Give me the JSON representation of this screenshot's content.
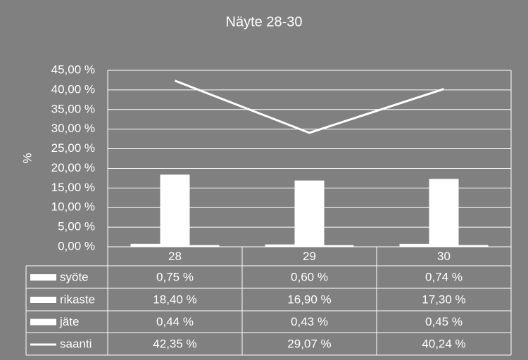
{
  "chart_data": {
    "type": "bar_line",
    "title": "Näyte 28-30",
    "y_label": "%",
    "categories": [
      "28",
      "29",
      "30"
    ],
    "series": [
      {
        "name": "syöte",
        "kind": "bar",
        "color": "#ffffff",
        "values": [
          0.75,
          0.6,
          0.74
        ],
        "value_labels": [
          "0,75 %",
          "0,60 %",
          "0,74 %"
        ]
      },
      {
        "name": "rikaste",
        "kind": "bar",
        "color": "#ffffff",
        "values": [
          18.4,
          16.9,
          17.3
        ],
        "value_labels": [
          "18,40 %",
          "16,90 %",
          "17,30 %"
        ]
      },
      {
        "name": "jäte",
        "kind": "bar",
        "color": "#ffffff",
        "values": [
          0.44,
          0.43,
          0.45
        ],
        "value_labels": [
          "0,44 %",
          "0,43 %",
          "0,45 %"
        ]
      },
      {
        "name": "saanti",
        "kind": "line",
        "color": "#ffffff",
        "values": [
          42.35,
          29.07,
          40.24
        ],
        "value_labels": [
          "42,35 %",
          "29,07 %",
          "40,24 %"
        ]
      }
    ],
    "ylim": [
      0,
      45
    ],
    "yticks": [
      {
        "value": 0,
        "label": "0,00 %"
      },
      {
        "value": 5,
        "label": "5,00 %"
      },
      {
        "value": 10,
        "label": "10,00 %"
      },
      {
        "value": 15,
        "label": "15,00 %"
      },
      {
        "value": 20,
        "label": "20,00 %"
      },
      {
        "value": 25,
        "label": "25,00 %"
      },
      {
        "value": 30,
        "label": "30,00 %"
      },
      {
        "value": 35,
        "label": "35,00 %"
      },
      {
        "value": 40,
        "label": "40,00 %"
      },
      {
        "value": 45,
        "label": "45,00 %"
      }
    ],
    "grid": true
  }
}
